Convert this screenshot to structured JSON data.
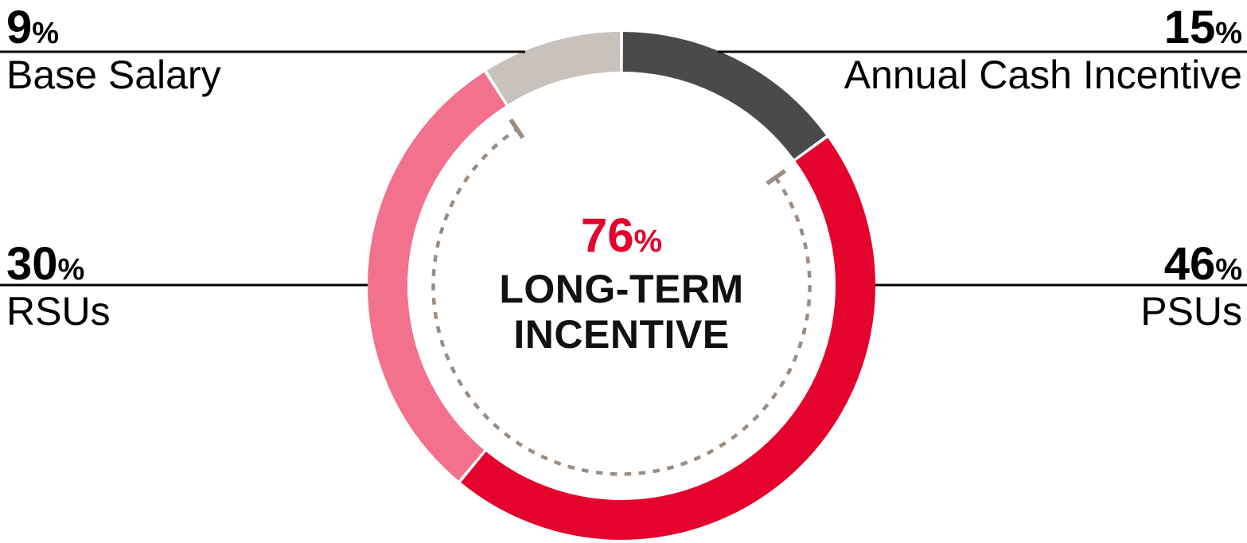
{
  "chart_data": {
    "type": "donut",
    "title": "",
    "start_angle_deg": 0,
    "direction": "clockwise",
    "legend_position": "callouts-with-leader-lines",
    "segments": [
      {
        "label": "Annual Cash Incentive",
        "value": 15,
        "unit": "%",
        "color": "#4a4a4c"
      },
      {
        "label": "PSUs",
        "value": 46,
        "unit": "%",
        "color": "#e4032d"
      },
      {
        "label": "RSUs",
        "value": 30,
        "unit": "%",
        "color": "#f2718c"
      },
      {
        "label": "Base Salary",
        "value": 9,
        "unit": "%",
        "color": "#c9c1bc"
      }
    ],
    "center_label": {
      "value": "76",
      "unit": "%",
      "line1": "LONG-TERM",
      "line2": "INCENTIVE",
      "value_color": "#e4032d",
      "label_color": "#111111"
    },
    "dashed_arc": {
      "spans_segments": [
        "PSUs",
        "RSUs"
      ],
      "color": "#9b8d83"
    },
    "leader_line_color": "#000000"
  },
  "callouts": {
    "top_left": {
      "value": "9",
      "unit": "%",
      "label": "Base Salary"
    },
    "top_right": {
      "value": "15",
      "unit": "%",
      "label": "Annual Cash Incentive"
    },
    "mid_left": {
      "value": "30",
      "unit": "%",
      "label": "RSUs"
    },
    "mid_right": {
      "value": "46",
      "unit": "%",
      "label": "PSUs"
    },
    "center": {
      "value": "76",
      "unit": "%",
      "line1": "LONG-TERM",
      "line2": "INCENTIVE"
    }
  }
}
